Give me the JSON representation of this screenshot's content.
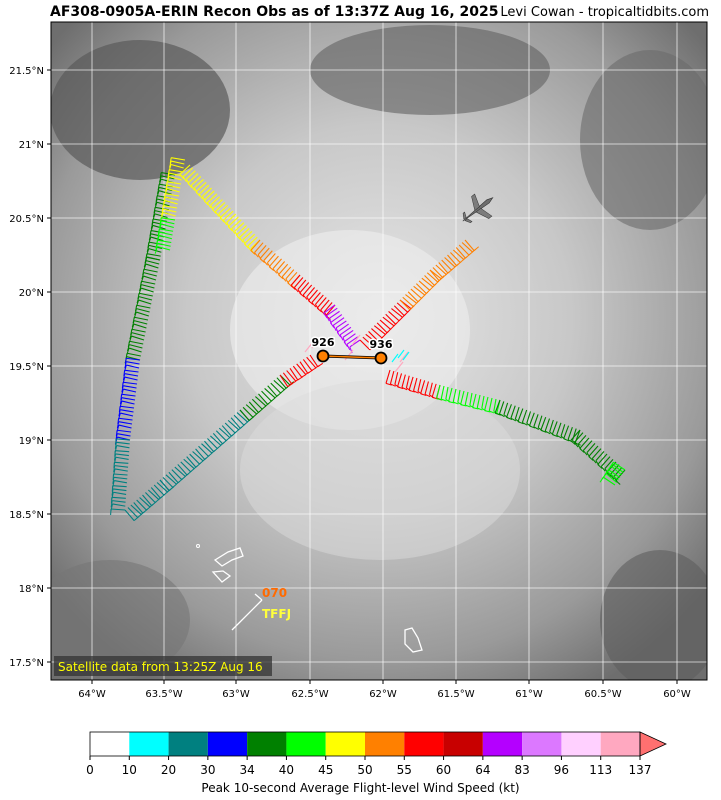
{
  "header": {
    "title": "AF308-0905A-ERIN Recon Obs as of 13:37Z Aug 16, 2025",
    "credit": "Levi Cowan - tropicaltidbits.com"
  },
  "map": {
    "lon_range": [
      -64.3,
      -59.8
    ],
    "lat_range": [
      17.4,
      21.8
    ],
    "lat_ticks": [
      "21.5°N",
      "21°N",
      "20.5°N",
      "20°N",
      "19.5°N",
      "19°N",
      "18.5°N",
      "18°N",
      "17.5°N"
    ],
    "lon_ticks": [
      "64°W",
      "63.5°W",
      "63°W",
      "62.5°W",
      "62°W",
      "61.5°W",
      "61°W",
      "60.5°W",
      "60°W"
    ],
    "satellite_note": "Satellite data from 13:25Z Aug 16",
    "pressure_labels": [
      {
        "text": "926",
        "lon": -62.4,
        "lat": 19.56
      },
      {
        "text": "936",
        "lon": -62.0,
        "lat": 19.55
      }
    ],
    "station": {
      "wind": "070",
      "id": "TFFJ",
      "lon": -62.8,
      "lat": 17.9
    }
  },
  "colorbar": {
    "ticks": [
      "0",
      "10",
      "20",
      "30",
      "34",
      "40",
      "45",
      "50",
      "55",
      "60",
      "64",
      "83",
      "96",
      "113",
      "137"
    ],
    "colors": [
      "#ffffff",
      "#00ffff",
      "#008080",
      "#0000ff",
      "#008000",
      "#00ff00",
      "#ffff00",
      "#ff8000",
      "#ff0000",
      "#c80000",
      "#b400ff",
      "#dc78ff",
      "#ffd0ff",
      "#ffa8c0"
    ],
    "label": "Peak 10-second Average Flight-level Wind Speed (kt)"
  }
}
